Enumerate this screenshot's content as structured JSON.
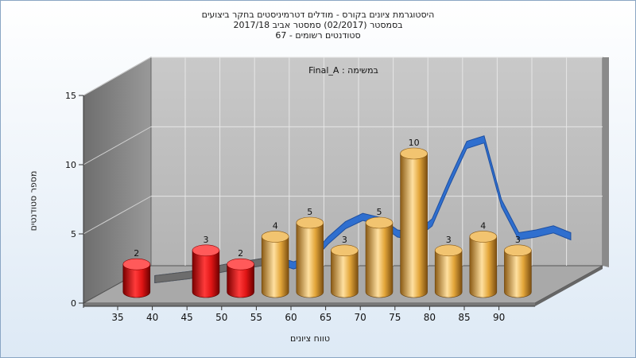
{
  "chart_data": {
    "type": "bar",
    "title_lines": [
      "היסטוגרמת ציונים בקורס - מודלים דטרמיניסטים בחקר ביצועים",
      "בסמסטר  (02/2017)  סמסטר אביב 2017/18",
      "סטודנטים רשומים - 67"
    ],
    "subtitle": "במשימה : Final_A",
    "xlabel": "טווח ציונים",
    "ylabel": "מספר סטודנטים",
    "ylim": [
      0,
      15
    ],
    "y_ticks": [
      0,
      5,
      10,
      15
    ],
    "x_ticks": [
      "35",
      "40",
      "45",
      "50",
      "55",
      "60",
      "65",
      "70",
      "75",
      "80",
      "85",
      "90"
    ],
    "categories": [
      "35-40",
      "45-50",
      "50-55",
      "55-60",
      "60-65",
      "65-70",
      "70-75",
      "75-80",
      "80-85",
      "85-90",
      "90-95"
    ],
    "bar_x": [
      37.5,
      47.5,
      52.5,
      57.5,
      62.5,
      67.5,
      72.5,
      77.5,
      82.5,
      87.5,
      92.5
    ],
    "values": [
      2,
      3,
      2,
      4,
      5,
      3,
      5,
      10,
      3,
      4,
      3
    ],
    "labels": [
      "2",
      "3",
      "2",
      "4",
      "5",
      "3",
      "5",
      "10",
      "3",
      "4",
      "3"
    ],
    "bar_colors": [
      "red",
      "red",
      "red",
      "gold",
      "gold",
      "gold",
      "gold",
      "gold",
      "gold",
      "gold",
      "gold"
    ],
    "colors": {
      "fail": "#e01515",
      "pass": "#e3a63a",
      "distribution": "#2f6fcf"
    },
    "distribution_curve": {
      "x": [
        35,
        40,
        45,
        50,
        52.5,
        55,
        57.5,
        60,
        62.5,
        65,
        67.5,
        70,
        72.5,
        75,
        77.5,
        80,
        82.5,
        85,
        87.5,
        90,
        92.5,
        95
      ],
      "y": [
        0.5,
        0.8,
        1.3,
        1.7,
        1.9,
        1.5,
        1.9,
        3.3,
        4.4,
        5.0,
        4.7,
        3.8,
        3.6,
        4.6,
        7.5,
        10.2,
        10.6,
        6.0,
        3.6,
        3.8,
        4.1,
        3.6
      ]
    },
    "grid": true
  }
}
